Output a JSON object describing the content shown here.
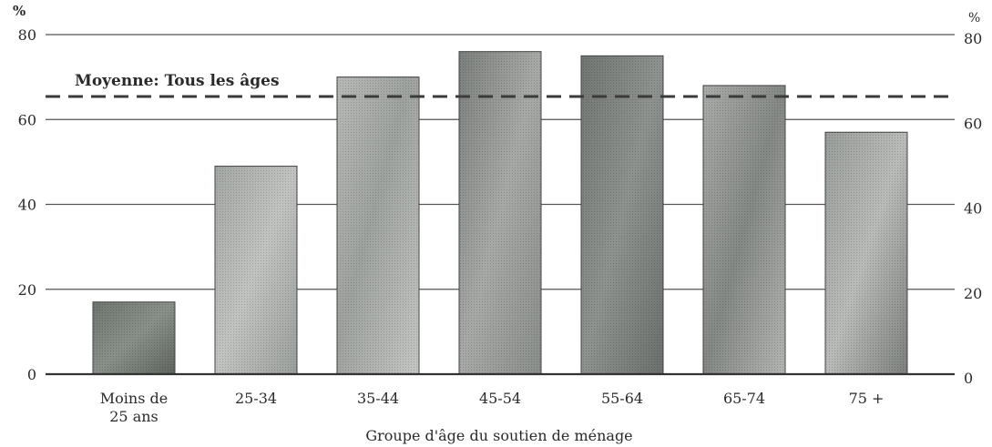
{
  "chart_data": {
    "type": "bar",
    "title": "",
    "xlabel": "Groupe d'âge du soutien de ménage",
    "ylabel": "%",
    "ylabel_right": "%",
    "ylim": [
      0,
      80
    ],
    "yticks": [
      0,
      20,
      40,
      60,
      80
    ],
    "grid": true,
    "categories": [
      [
        "Moins de",
        "25 ans"
      ],
      [
        "25-34"
      ],
      [
        "35-44"
      ],
      [
        "45-54"
      ],
      [
        "55-64"
      ],
      [
        "65-74"
      ],
      [
        "75 +"
      ]
    ],
    "values": [
      17,
      49,
      70,
      76,
      75,
      68,
      57
    ],
    "reference_line": {
      "label": "Moyenne: Tous les âges",
      "value": 65,
      "style": "dashed"
    }
  }
}
